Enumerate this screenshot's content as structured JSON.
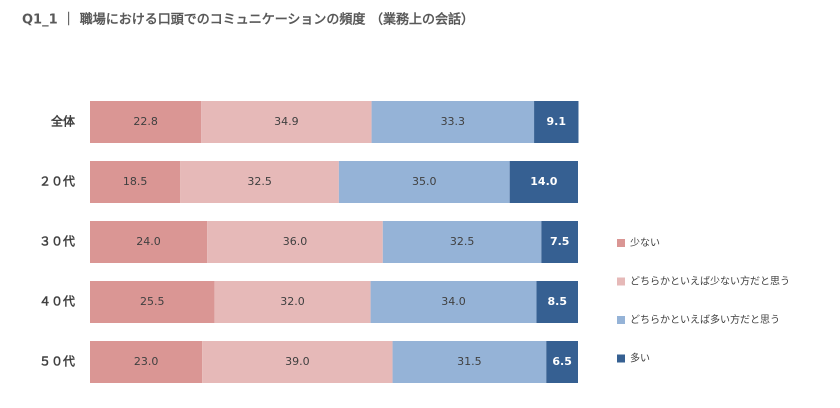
{
  "chart_data": {
    "type": "stacked-bar-horizontal",
    "title": "Q1_1 ｜ 職場における口頭でのコミュニケーションの頻度 （業務上の会話）",
    "categories": [
      "全体",
      "２０代",
      "３０代",
      "４０代",
      "５０代"
    ],
    "xlim": [
      0,
      100
    ],
    "series": [
      {
        "name": "少ない",
        "color": "#da9694",
        "values": [
          22.8,
          18.5,
          24.0,
          25.5,
          23.0
        ],
        "value_labels": [
          "22.8",
          "18.5",
          "24.0",
          "25.5",
          "23.0"
        ]
      },
      {
        "name": "どちらかといえば少ない方だと思う",
        "color": "#e6b9b8",
        "values": [
          34.9,
          32.5,
          36.0,
          32.0,
          39.0
        ],
        "value_labels": [
          "34.9",
          "32.5",
          "36.0",
          "32.0",
          "39.0"
        ]
      },
      {
        "name": "どちらかといえば多い方だと思う",
        "color": "#95b3d7",
        "values": [
          33.3,
          35.0,
          32.5,
          34.0,
          31.5
        ],
        "value_labels": [
          "33.3",
          "35.0",
          "32.5",
          "34.0",
          "31.5"
        ]
      },
      {
        "name": "多い",
        "color": "#366092",
        "values": [
          9.1,
          14.0,
          7.5,
          8.5,
          6.5
        ],
        "value_labels": [
          "9.1",
          "14.0",
          "7.5",
          "8.5",
          "6.5"
        ]
      }
    ]
  }
}
